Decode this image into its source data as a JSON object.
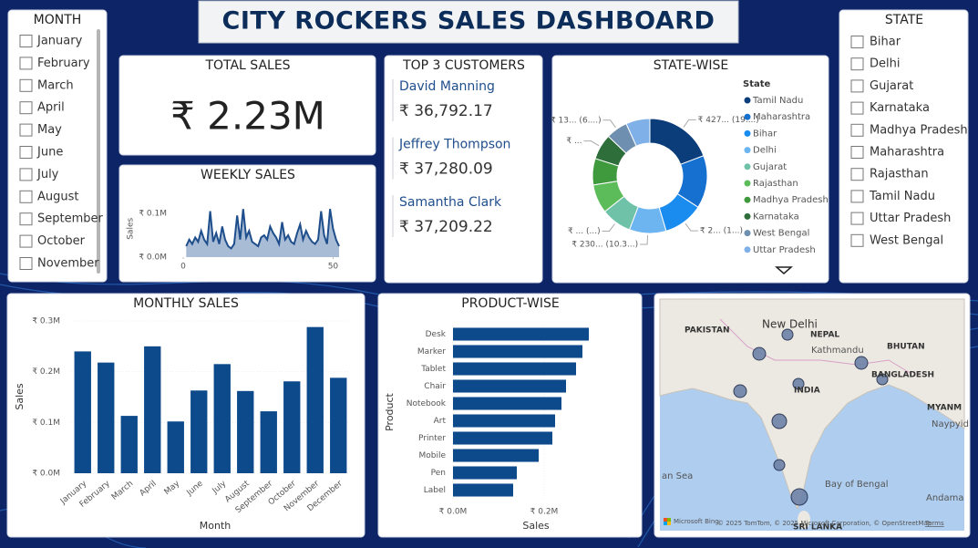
{
  "title": "CITY ROCKERS SALES DASHBOARD",
  "month_slicer": {
    "title": "MONTH",
    "items": [
      "January",
      "February",
      "March",
      "April",
      "May",
      "June",
      "July",
      "August",
      "September",
      "October",
      "November"
    ]
  },
  "state_slicer": {
    "title": "STATE",
    "items": [
      "Bihar",
      "Delhi",
      "Gujarat",
      "Karnataka",
      "Madhya Pradesh",
      "Maharashtra",
      "Rajasthan",
      "Tamil Nadu",
      "Uttar Pradesh",
      "West Bengal"
    ]
  },
  "total_sales": {
    "title": "TOTAL SALES",
    "value": "₹ 2.23M"
  },
  "top_customers": {
    "title": "TOP 3 CUSTOMERS",
    "items": [
      {
        "name": "David Manning",
        "amount": "₹ 36,792.17"
      },
      {
        "name": "Jeffrey Thompson",
        "amount": "₹ 37,280.09"
      },
      {
        "name": "Samantha Clark",
        "amount": "₹ 37,209.22"
      }
    ]
  },
  "chart_data": [
    {
      "type": "area",
      "title": "WEEKLY SALES",
      "y_label": "Sales",
      "color": "#1f4e8c",
      "fill": "#a9bcd6",
      "x": [
        1,
        2,
        3,
        4,
        5,
        6,
        7,
        8,
        9,
        10,
        11,
        12,
        13,
        14,
        15,
        16,
        17,
        18,
        19,
        20,
        21,
        22,
        23,
        24,
        25,
        26,
        27,
        28,
        29,
        30,
        31,
        32,
        33,
        34,
        35,
        36,
        37,
        38,
        39,
        40,
        41,
        42,
        43,
        44,
        45,
        46,
        47,
        48,
        49,
        50,
        51,
        52
      ],
      "values": [
        25000,
        40000,
        30000,
        45000,
        35000,
        60000,
        40000,
        30000,
        105000,
        35000,
        55000,
        30000,
        70000,
        40000,
        25000,
        20000,
        30000,
        95000,
        40000,
        110000,
        45000,
        60000,
        35000,
        30000,
        25000,
        45000,
        50000,
        40000,
        70000,
        55000,
        45000,
        30000,
        80000,
        40000,
        50000,
        35000,
        30000,
        55000,
        75000,
        40000,
        60000,
        45000,
        35000,
        30000,
        40000,
        105000,
        50000,
        30000,
        110000,
        65000,
        40000,
        25000
      ],
      "xlim": [
        0,
        52
      ],
      "xticks": [
        0,
        50
      ],
      "ylim": [
        0,
        130000
      ],
      "yticks": [
        {
          "value": 0,
          "label": "₹ 0.0M"
        },
        {
          "value": 100000,
          "label": "₹ 0.1M"
        }
      ]
    },
    {
      "type": "donut",
      "title": "STATE-WISE",
      "legend_title": "State",
      "categories": [
        "Tamil Nadu",
        "Maharashtra",
        "Bihar",
        "Delhi",
        "Gujarat",
        "Rajasthan",
        "Madhya Pradesh",
        "Karnataka",
        "West Bengal",
        "Uttar Pradesh"
      ],
      "values": [
        427000,
        330000,
        250000,
        230000,
        190000,
        180000,
        165000,
        160000,
        135000,
        150000
      ],
      "value_labels": [
        "₹ 427... (19....)",
        null,
        "₹ 2... (1...)",
        "₹ 230... (10.3...)",
        "₹ ... (...)",
        null,
        null,
        "₹ ...",
        "₹ 13... (6....)",
        null
      ],
      "colors": [
        "#0b3d7a",
        "#1670d0",
        "#1a8cf0",
        "#6cb5f0",
        "#6fc2a8",
        "#5cbc5a",
        "#3f9a3e",
        "#2e6e3a",
        "#6f8fb0",
        "#7fb0e8"
      ]
    },
    {
      "type": "bar",
      "title": "MONTHLY SALES",
      "x_label": "Month",
      "y_label": "Sales",
      "color": "#0d4a8c",
      "categories": [
        "January",
        "February",
        "March",
        "April",
        "May",
        "June",
        "July",
        "August",
        "September",
        "October",
        "November",
        "December"
      ],
      "values": [
        240000,
        218000,
        113000,
        250000,
        102000,
        163000,
        215000,
        162000,
        122000,
        181000,
        288000,
        188000
      ],
      "ylim": [
        0,
        300000
      ],
      "yticks": [
        {
          "value": 0,
          "label": "₹ 0.0M"
        },
        {
          "value": 100000,
          "label": "₹ 0.1M"
        },
        {
          "value": 200000,
          "label": "₹ 0.2M"
        },
        {
          "value": 300000,
          "label": "₹ 0.3M"
        }
      ]
    },
    {
      "type": "barh",
      "title": "PRODUCT-WISE",
      "x_label": "Sales",
      "y_label": "Product",
      "color": "#0d4a8c",
      "categories": [
        "Desk",
        "Marker",
        "Tablet",
        "Chair",
        "Notebook",
        "Art",
        "Printer",
        "Mobile",
        "Pen",
        "Label"
      ],
      "values": [
        298000,
        284000,
        270000,
        248000,
        238000,
        224000,
        218000,
        188000,
        140000,
        132000
      ],
      "xlim": [
        0,
        320000
      ],
      "xticks": [
        {
          "value": 0,
          "label": "₹ 0.0M"
        },
        {
          "value": 200000,
          "label": "₹ 0.2M"
        }
      ]
    }
  ],
  "map": {
    "labels": [
      "PAKISTAN",
      "New Delhi",
      "NEPAL",
      "Kathmandu",
      "BHUTAN",
      "BANGLADESH",
      "INDIA",
      "MYANM",
      "Naypyid",
      "an Sea",
      "Bay of Bengal",
      "Andama",
      "SRI LANKA"
    ],
    "credit": "Microsoft Bing",
    "attribution": "© 2025 TomTom, © 2025 Microsoft Corporation, © OpenStreetMap",
    "terms": "Terms"
  }
}
